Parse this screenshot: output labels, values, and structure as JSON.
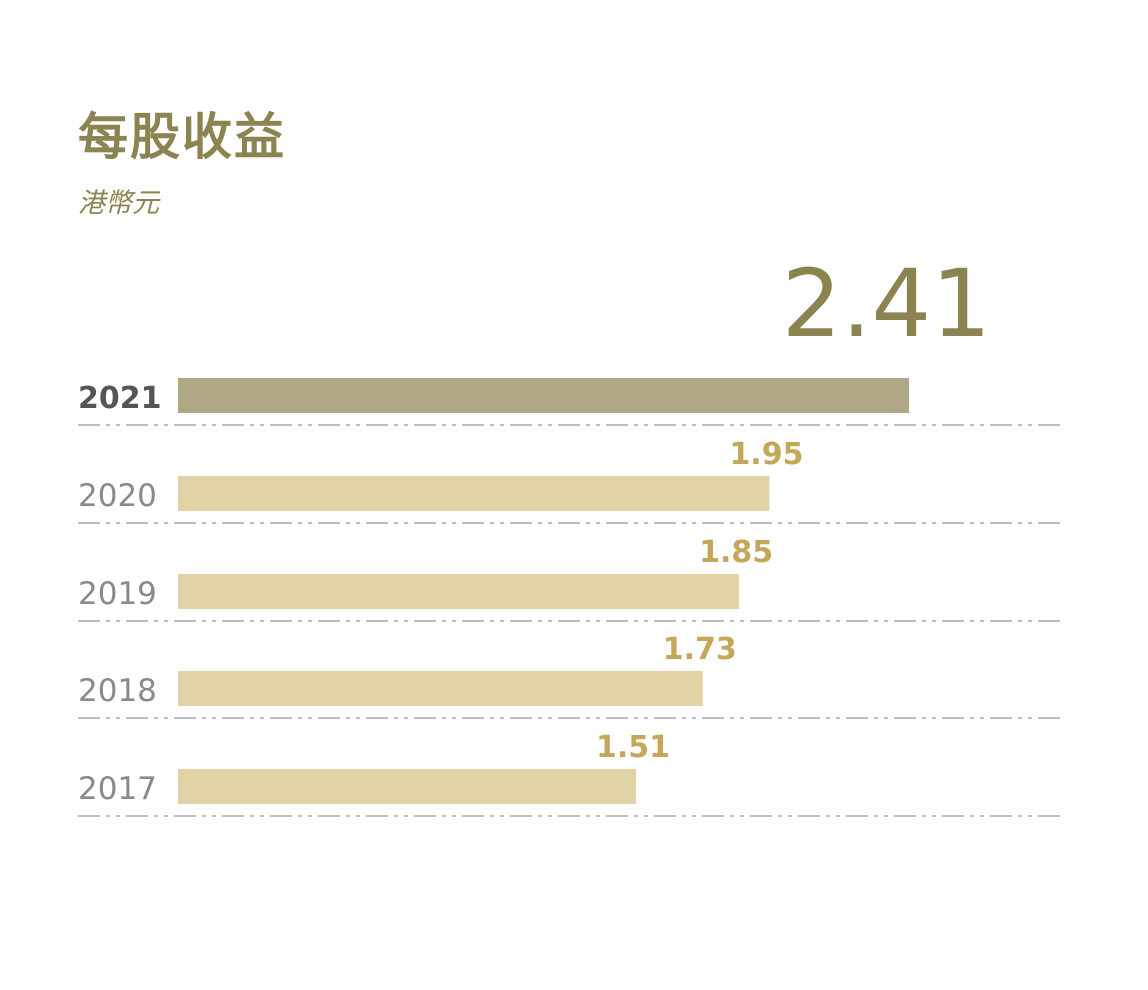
{
  "chart_data": {
    "type": "bar",
    "orientation": "horizontal",
    "title": "每股收益",
    "subtitle": "港幣元",
    "categories": [
      "2021",
      "2020",
      "2019",
      "2018",
      "2017"
    ],
    "values": [
      2.41,
      1.95,
      1.85,
      1.73,
      1.51
    ],
    "value_labels": [
      "2.41",
      "1.95",
      "1.85",
      "1.73",
      "1.51"
    ],
    "highlight_index": 0,
    "xlim": [
      0,
      2.41
    ],
    "grid": false,
    "colors": {
      "highlight_bar": "#aea886",
      "bar": "#e2d3a7",
      "highlight_value": "#8b8450",
      "value": "#c3a75a",
      "highlight_label": "#555555",
      "label": "#8a8a8a",
      "divider": "#a8a8a8"
    }
  }
}
